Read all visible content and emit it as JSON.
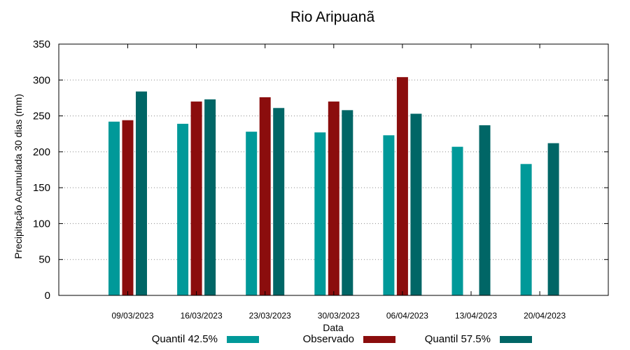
{
  "chart_data": {
    "type": "bar",
    "title": "Rio Aripuanã",
    "xlabel": "Data",
    "ylabel": "Precipitação Acumulada 30 dias (mm)",
    "ylim": [
      0,
      350
    ],
    "yticks": [
      0,
      50,
      100,
      150,
      200,
      250,
      300,
      350
    ],
    "grid": true,
    "legend_position": "bottom",
    "categories": [
      "09/03/2023",
      "16/03/2023",
      "23/03/2023",
      "30/03/2023",
      "06/04/2023",
      "13/04/2023",
      "20/04/2023"
    ],
    "series": [
      {
        "name": "Quantil 42.5%",
        "color": "#009999",
        "values": [
          242,
          239,
          228,
          227,
          223,
          207,
          183
        ]
      },
      {
        "name": "Observado",
        "color": "#8b0d0d",
        "values": [
          244,
          270,
          276,
          270,
          304,
          null,
          null
        ]
      },
      {
        "name": "Quantil 57.5%",
        "color": "#006666",
        "values": [
          284,
          273,
          261,
          258,
          253,
          237,
          212
        ]
      }
    ]
  }
}
